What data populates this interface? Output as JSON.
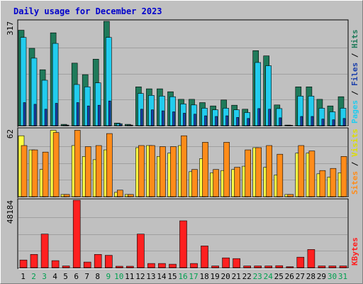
{
  "chart_data": {
    "type": "bar",
    "title": "Daily usage for December 2023",
    "categories": [
      "1",
      "2",
      "3",
      "4",
      "5",
      "6",
      "7",
      "8",
      "9",
      "10",
      "11",
      "12",
      "13",
      "14",
      "15",
      "16",
      "17",
      "18",
      "19",
      "20",
      "21",
      "22",
      "23",
      "24",
      "25",
      "26",
      "27",
      "28",
      "29",
      "30",
      "31"
    ],
    "weekend_days": [
      "2",
      "3",
      "9",
      "10",
      "16",
      "17",
      "23",
      "24",
      "30",
      "31"
    ],
    "panels": [
      {
        "key": "hits_files_pages",
        "max_label": "317",
        "ylim": [
          0,
          317
        ],
        "series": [
          {
            "name": "Hits",
            "color": "#1f7a5a",
            "values": [
              290,
              235,
              170,
              282,
              4,
              190,
              155,
              202,
              317,
              8,
              4,
              118,
              112,
              112,
              103,
              80,
              80,
              70,
              60,
              78,
              62,
              50,
              228,
              212,
              63,
              2,
              118,
              118,
              80,
              60,
              88
            ]
          },
          {
            "name": "Files",
            "color": "#22ccee",
            "values": [
              268,
              205,
              138,
              250,
              2,
              125,
              118,
              130,
              268,
              6,
              2,
              98,
              92,
              90,
              88,
              66,
              63,
              53,
              48,
              53,
              48,
              40,
              192,
              182,
              52,
              1,
              90,
              90,
              53,
              42,
              53
            ]
          },
          {
            "name": "Pages",
            "color": "#1b3faa",
            "values": [
              70,
              65,
              50,
              68,
              1,
              70,
              60,
              62,
              75,
              4,
              1,
              50,
              48,
              45,
              42,
              38,
              35,
              30,
              28,
              30,
              25,
              22,
              52,
              50,
              24,
              0,
              28,
              28,
              20,
              18,
              22
            ]
          }
        ],
        "label_parts": [
          {
            "text": "Pages",
            "color": "#22ccee"
          },
          {
            "text": " / ",
            "color": "#000000"
          },
          {
            "text": "Files",
            "color": "#1b3faa"
          },
          {
            "text": " / ",
            "color": "#000000"
          },
          {
            "text": "Hits",
            "color": "#1f7a5a"
          }
        ]
      },
      {
        "key": "visits_sites",
        "max_label": "62",
        "ylim": [
          0,
          62
        ],
        "series": [
          {
            "name": "Visits",
            "color": "#ffff44",
            "values": [
              56,
              43,
              25,
              61,
              2,
              47,
              37,
              34,
              43,
              4,
              2,
              45,
              47,
              37,
              40,
              47,
              23,
              35,
              22,
              24,
              25,
              28,
              45,
              27,
              20,
              2,
              40,
              40,
              21,
              18,
              22
            ]
          },
          {
            "name": "Sites",
            "color": "#ff8c1a",
            "values": [
              47,
              43,
              41,
              59,
              2,
              61,
              46,
              47,
              58,
              6,
              2,
              47,
              47,
              46,
              46,
              56,
              25,
              50,
              25,
              50,
              27,
              43,
              45,
              47,
              39,
              2,
              47,
              42,
              24,
              26,
              37
            ]
          }
        ],
        "label_parts": [
          {
            "text": "Sites",
            "color": "#ff8c1a"
          },
          {
            "text": " / ",
            "color": "#000000"
          },
          {
            "text": "Visits",
            "color": "#dddd00"
          }
        ]
      },
      {
        "key": "kbytes",
        "max_label": "48184",
        "ylim": [
          0,
          48184
        ],
        "series": [
          {
            "name": "KBytes",
            "color": "#ff2020",
            "values": [
              5500,
              9500,
              24000,
              5000,
              1200,
              48184,
              4000,
              9500,
              8800,
              1000,
              1000,
              24000,
              3000,
              3000,
              2500,
              33500,
              3000,
              15500,
              1200,
              7000,
              6500,
              1200,
              1200,
              1200,
              1400,
              700,
              7500,
              13000,
              1200,
              1200,
              1200
            ]
          }
        ],
        "label_parts": [
          {
            "text": "KBytes",
            "color": "#ff2020"
          }
        ]
      }
    ]
  },
  "colors": {
    "background": "#c0c0c0",
    "frame_light": "#ffffff",
    "frame_dark": "#808080",
    "title": "#0000cc",
    "day_label": "#000000",
    "weekend_label": "#00a050"
  }
}
